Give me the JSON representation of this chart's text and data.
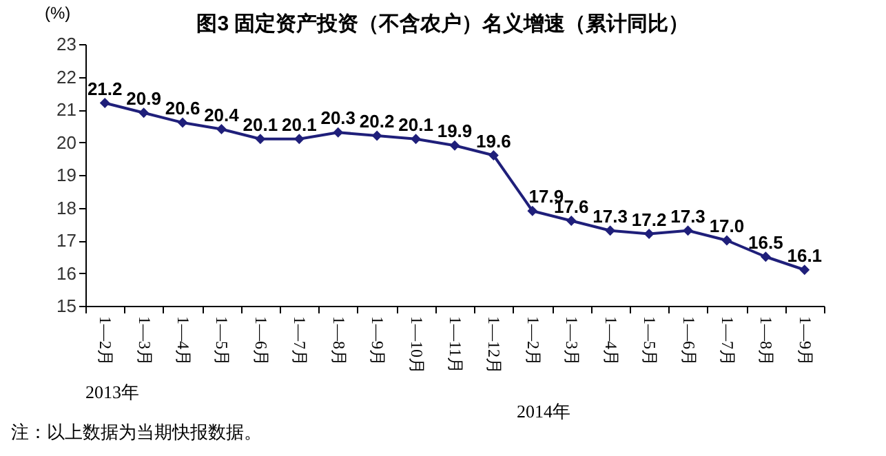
{
  "chart_data": {
    "type": "line",
    "title": "图3 固定资产投资（不含农户）名义增速（累计同比）",
    "ylabel": "(%)",
    "categories": [
      "1—2月",
      "1—3月",
      "1—4月",
      "1—5月",
      "1—6月",
      "1—7月",
      "1—8月",
      "1—9月",
      "1—10月",
      "1—11月",
      "1—12月",
      "1—2月",
      "1—3月",
      "1—4月",
      "1—5月",
      "1—6月",
      "1—7月",
      "1—8月",
      "1—9月"
    ],
    "series": [
      {
        "color": "#1f1f7a",
        "values": [
          21.2,
          20.9,
          20.6,
          20.4,
          20.1,
          20.1,
          20.3,
          20.2,
          20.1,
          19.9,
          19.6,
          17.9,
          17.6,
          17.3,
          17.2,
          17.3,
          17.0,
          16.5,
          16.1
        ],
        "value_labels": [
          "21.2",
          "20.9",
          "20.6",
          "20.4",
          "20.1",
          "20.1",
          "20.3",
          "20.2",
          "20.1",
          "19.9",
          "19.6",
          "17.9",
          "17.6",
          "17.3",
          "17.2",
          "17.3",
          "17.0",
          "16.5",
          "16.1"
        ]
      }
    ],
    "ylim": [
      15,
      23
    ],
    "yticks": [
      15,
      16,
      17,
      18,
      19,
      20,
      21,
      22,
      23
    ],
    "grid": false,
    "marker": "diamond",
    "annotations": [
      "2013年",
      "2014年",
      "注：以上数据为当期快报数据。"
    ]
  }
}
